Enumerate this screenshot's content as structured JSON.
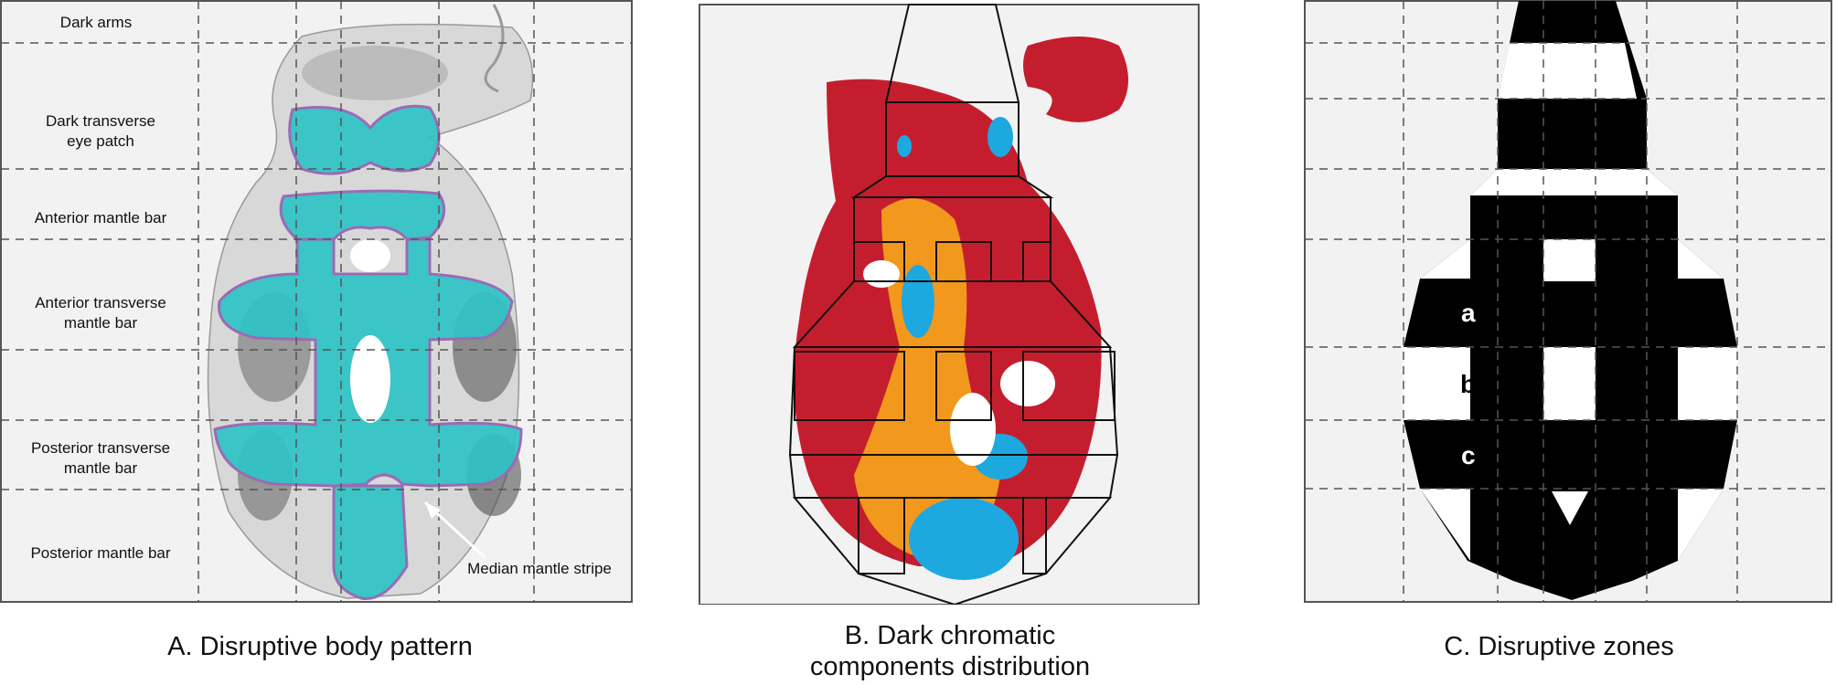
{
  "colors": {
    "background_panel": "#f2f2f2",
    "body_pattern_fill": "#2fc3c6",
    "body_pattern_outline": "#9a6bb5",
    "chromatic_red": "#c41e2e",
    "chromatic_orange": "#f2981c",
    "chromatic_blue": "#1ea8e0",
    "zone_black": "#000000",
    "zone_white": "#ffffff"
  },
  "panel_a": {
    "labels": {
      "dark_arms": "Dark arms",
      "eye_patch_line1": "Dark transverse",
      "eye_patch_line2": "eye patch",
      "anterior_mantle_bar": "Anterior mantle bar",
      "anterior_transverse_line1": "Anterior transverse",
      "anterior_transverse_line2": "mantle bar",
      "posterior_transverse_line1": "Posterior transverse",
      "posterior_transverse_line2": "mantle bar",
      "posterior_mantle_bar": "Posterior mantle bar",
      "median_stripe": "Median mantle stripe"
    },
    "caption": "A. Disruptive body pattern"
  },
  "panel_b": {
    "caption_line1": "B. Dark chromatic",
    "caption_line2": "components distribution"
  },
  "panel_c": {
    "zone_letters": [
      "a",
      "b",
      "c"
    ],
    "caption": "C. Disruptive zones"
  }
}
